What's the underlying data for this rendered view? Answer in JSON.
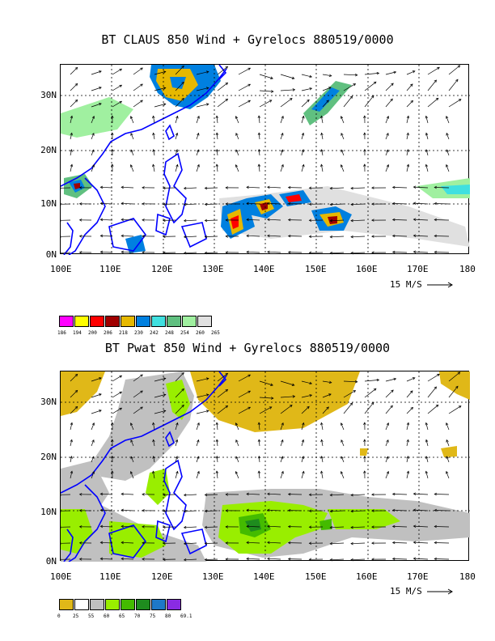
{
  "panel1": {
    "title": "BT CLAUS 850 Wind + Gyrelocs 880519/0000",
    "lat_labels": [
      "30N",
      "20N",
      "10N",
      "0N"
    ],
    "lon_labels": [
      "100E",
      "110E",
      "120E",
      "130E",
      "140E",
      "150E",
      "160E",
      "170E",
      "180"
    ],
    "wind_ref": "15 M/S",
    "legend": {
      "colors": [
        "#ff00ff",
        "#ffff00",
        "#ff0000",
        "#a00000",
        "#e6b800",
        "#0080e0",
        "#40e0e0",
        "#60c080",
        "#a0f0a0",
        "#e0e0e0"
      ],
      "labels": [
        "186",
        "194",
        "200",
        "206",
        "218",
        "230",
        "242",
        "248",
        "254",
        "260",
        "265"
      ]
    }
  },
  "panel2": {
    "title": "BT Pwat 850 Wind + Gyrelocs 880519/0000",
    "lat_labels": [
      "30N",
      "20N",
      "10N",
      "0N"
    ],
    "lon_labels": [
      "100E",
      "110E",
      "120E",
      "130E",
      "140E",
      "150E",
      "160E",
      "170E",
      "180"
    ],
    "wind_ref": "15 M/S",
    "legend": {
      "colors": [
        "#e0b818",
        "#ffffff",
        "#c0c0c0",
        "#99ee00",
        "#44bb00",
        "#1e8c1e",
        "#1e78c8",
        "#8a2be2"
      ],
      "labels": [
        "0",
        "25",
        "55",
        "60",
        "65",
        "70",
        "75",
        "80",
        "69.1"
      ]
    }
  }
}
